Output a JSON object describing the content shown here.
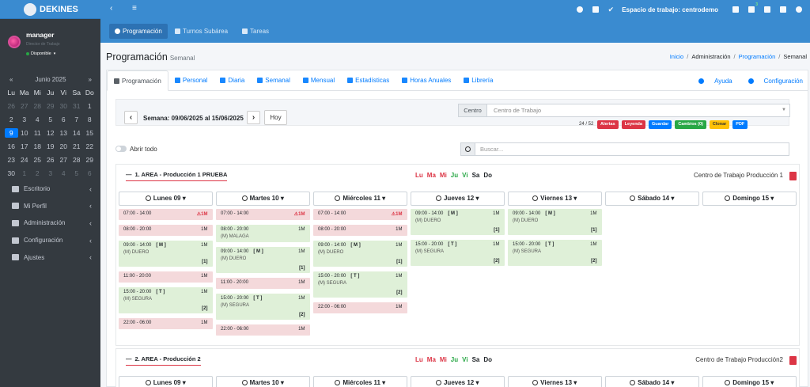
{
  "brand": "DEKINES",
  "user": {
    "name": "manager",
    "role": "Director de Trabajo",
    "status": "Disponible"
  },
  "calendar": {
    "title": "Junio 2025",
    "prev": "«",
    "next": "»",
    "dow": [
      "Lu",
      "Ma",
      "Mi",
      "Ju",
      "Vi",
      "Sa",
      "Do"
    ],
    "weeks": [
      [
        "26",
        "27",
        "28",
        "29",
        "30",
        "31",
        "1"
      ],
      [
        "2",
        "3",
        "4",
        "5",
        "6",
        "7",
        "8"
      ],
      [
        "9",
        "10",
        "11",
        "12",
        "13",
        "14",
        "15"
      ],
      [
        "16",
        "17",
        "18",
        "19",
        "20",
        "21",
        "22"
      ],
      [
        "23",
        "24",
        "25",
        "26",
        "27",
        "28",
        "29"
      ],
      [
        "30",
        "1",
        "2",
        "3",
        "4",
        "5",
        "6"
      ]
    ],
    "today": "9"
  },
  "nav": [
    "Escritorio",
    "Mi Perfil",
    "Administración",
    "Configuración",
    "Ajustes"
  ],
  "topbar": {
    "workspace": "Espacio de trabajo: centrodemo",
    "badge": "3"
  },
  "subnav": [
    "Programación",
    "Turnos Subárea",
    "Tareas"
  ],
  "header": {
    "title": "Programación",
    "subtitle": "Semanal",
    "crumbs": [
      "Inicio",
      "Administración",
      "Programación",
      "Semanal"
    ]
  },
  "tabs": [
    "Programación",
    "Personal",
    "Diaria",
    "Semanal",
    "Mensual",
    "Estadísticas",
    "Horas Anuales",
    "Librería"
  ],
  "tabs_right": [
    "Ayuda",
    "Configuración"
  ],
  "filter": {
    "prev": "‹",
    "next": "›",
    "week": "Semana: 09/06/2025 al 15/06/2025",
    "today": "Hoy",
    "centro_label": "Centro",
    "centro_placeholder": "Centro de Trabajo",
    "count": "24 / 52",
    "actions": [
      "Alertas",
      "Leyenda",
      "Guardar",
      "Cambios (0)",
      "Clonar",
      "PDF"
    ]
  },
  "toggle_label": "Abrir todo",
  "search_placeholder": "Buscar...",
  "weekdays_mini": [
    "Lu",
    "Ma",
    "Mi",
    "Ju",
    "Vi",
    "Sa",
    "Do"
  ],
  "areas": [
    {
      "title": "1. AREA - Producción 1 PRUEBA",
      "center": "Centro de Trabajo Producción 1"
    },
    {
      "title": "2. AREA - Producción 2",
      "center": "Centro de Trabajo Producción2"
    }
  ],
  "days": [
    "Lunes 09",
    "Martes 10",
    "Miércoles 11",
    "Jueves 12",
    "Viernes 13",
    "Sábado 14",
    "Domingo 15"
  ],
  "shifts": {
    "mon": [
      {
        "time": "07:00 - 14:00",
        "code": "1M",
        "alert": true
      },
      {
        "time": "08:00 - 20:00",
        "code": "1M"
      },
      {
        "time": "09:00 - 14:00",
        "tag": "[ M ]",
        "code": "1M",
        "loc": "(M) DUERO",
        "cnt": "[1]"
      },
      {
        "time": "11:00 - 20:00",
        "code": "1M"
      },
      {
        "time": "15:00 - 20:00",
        "tag": "[ T ]",
        "code": "1M",
        "loc": "(M) SEGURA",
        "cnt": "[2]"
      },
      {
        "time": "22:00 - 06:00",
        "code": "1M"
      }
    ],
    "tue": [
      {
        "time": "07:00 - 14:00",
        "code": "1M",
        "alert": true
      },
      {
        "time": "08:00 - 20:00",
        "code": "1M",
        "loc": "(M) MALAGA"
      },
      {
        "time": "09:00 - 14:00",
        "tag": "[ M ]",
        "code": "1M",
        "loc": "(M) DUERO",
        "cnt": "[1]"
      },
      {
        "time": "11:00 - 20:00",
        "code": "1M"
      },
      {
        "time": "15:00 - 20:00",
        "tag": "[ T ]",
        "code": "1M",
        "loc": "(M) SEGURA",
        "cnt": "[2]"
      },
      {
        "time": "22:00 - 06:00",
        "code": "1M"
      }
    ],
    "wed": [
      {
        "time": "07:00 - 14:00",
        "code": "1M",
        "alert": true
      },
      {
        "time": "08:00 - 20:00",
        "code": "1M"
      },
      {
        "time": "09:00 - 14:00",
        "tag": "[ M ]",
        "code": "1M",
        "loc": "(M) DUERO",
        "cnt": "[1]"
      },
      {
        "time": "15:00 - 20:00",
        "tag": "[ T ]",
        "code": "1M",
        "loc": "(M) SEGURA",
        "cnt": "[2]"
      },
      {
        "time": "22:00 - 06:00",
        "code": "1M"
      }
    ],
    "thu": [
      {
        "time": "09:00 - 14:00",
        "tag": "[ M ]",
        "code": "1M",
        "loc": "(M) DUERO",
        "cnt": "[1]"
      },
      {
        "time": "15:00 - 20:00",
        "tag": "[ T ]",
        "code": "1M",
        "loc": "(M) SEGURA",
        "cnt": "[2]"
      }
    ],
    "fri": [
      {
        "time": "09:00 - 14:00",
        "tag": "[ M ]",
        "code": "1M",
        "loc": "(M) DUERO",
        "cnt": "[1]"
      },
      {
        "time": "15:00 - 20:00",
        "tag": "[ T ]",
        "code": "1M",
        "loc": "(M) SEGURA",
        "cnt": "[2]"
      }
    ]
  }
}
